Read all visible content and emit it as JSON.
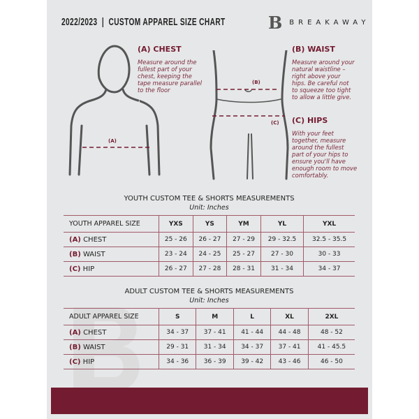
{
  "header": {
    "title": "2022/2023  |  CUSTOM APPAREL SIZE CHART",
    "logo_text": "BREAKAWAY",
    "logo_mark": "B"
  },
  "measures": {
    "chest": {
      "heading": "(A) CHEST",
      "label": "(A)",
      "description": "Measure around the fullest part of your chest, keeping the tape measure parallel to the floor"
    },
    "waist": {
      "heading": "(B) WAIST",
      "label": "(B)",
      "description": "Measure around your natural waistline – right above your hips. Be careful not to squeeze too tight to allow a little give."
    },
    "hips": {
      "heading": "(C) HIPS",
      "label": "(C)",
      "description": "With your feet together, measure around the fullest part of your hips to ensure you'll have enough room to move comfortably."
    }
  },
  "youth": {
    "title": "YOUTH CUSTOM TEE & SHORTS MEASUREMENTS",
    "unit": "Unit: Inches",
    "header": [
      "YOUTH APPAREL SIZE",
      "YXS",
      "YS",
      "YM",
      "YL",
      "YXL"
    ],
    "rows": [
      {
        "letter": "(A)",
        "name": "CHEST",
        "values": [
          "25 - 26",
          "26 - 27",
          "27 - 29",
          "29 - 32.5",
          "32.5 - 35.5"
        ]
      },
      {
        "letter": "(B)",
        "name": "WAIST",
        "values": [
          "23 - 24",
          "24 - 25",
          "25 - 27",
          "27 - 30",
          "30 - 33"
        ]
      },
      {
        "letter": "(C)",
        "name": "HIP",
        "values": [
          "26 - 27",
          "27 - 28",
          "28 - 31",
          "31 - 34",
          "34 - 37"
        ]
      }
    ]
  },
  "adult": {
    "title": "ADULT CUSTOM TEE & SHORTS MEASUREMENTS",
    "unit": "Unit: Inches",
    "header": [
      "ADULT APPAREL SIZE",
      "S",
      "M",
      "L",
      "XL",
      "2XL"
    ],
    "rows": [
      {
        "letter": "(A)",
        "name": "CHEST",
        "values": [
          "34 - 37",
          "37 - 41",
          "41 - 44",
          "44 - 48",
          "48 - 52"
        ]
      },
      {
        "letter": "(B)",
        "name": "WAIST",
        "values": [
          "29 - 31",
          "31 - 34",
          "34 - 37",
          "37 - 41",
          "41 - 45.5"
        ]
      },
      {
        "letter": "(C)",
        "name": "HIP",
        "values": [
          "34 - 36",
          "36 - 39",
          "39 - 42",
          "43 - 46",
          "46 - 50"
        ]
      }
    ]
  },
  "colors": {
    "accent": "#731c31",
    "panel": "#e6e7e8"
  }
}
